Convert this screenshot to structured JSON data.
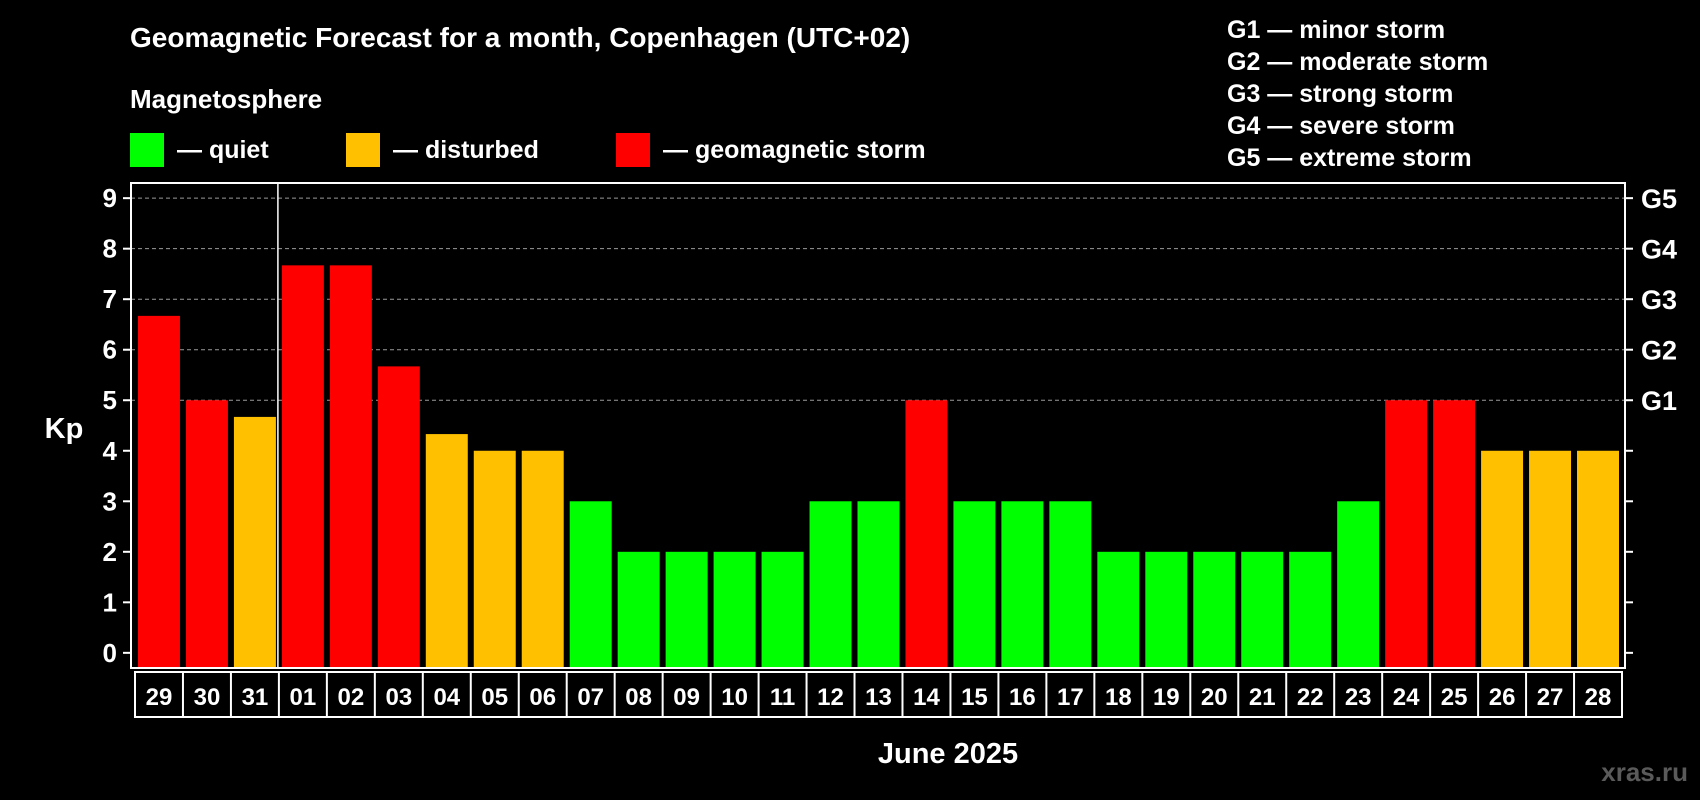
{
  "title": "Geomagnetic Forecast for a month, Copenhagen (UTC+02)",
  "subtitle": "Magnetosphere",
  "legend": [
    {
      "label": "— quiet",
      "color": "#00ff00"
    },
    {
      "label": "— disturbed",
      "color": "#ffc000"
    },
    {
      "label": "— geomagnetic storm",
      "color": "#ff0000"
    }
  ],
  "storm_scale": [
    "G1 — minor storm",
    "G2 — moderate storm",
    "G3 — strong storm",
    "G4 — severe storm",
    "G5 — extreme storm"
  ],
  "watermark": "xras.ru",
  "chart_data": {
    "type": "bar",
    "title": "Geomagnetic Forecast for a month, Copenhagen (UTC+02)",
    "ylabel": "Kp",
    "xlabel": "June 2025",
    "ylim": [
      -0.3,
      9.3
    ],
    "yticks": [
      "0",
      "1",
      "2",
      "3",
      "4",
      "5",
      "6",
      "7",
      "8",
      "9"
    ],
    "right_axis_labels": [
      {
        "value": 5,
        "label": "G1"
      },
      {
        "value": 6,
        "label": "G2"
      },
      {
        "value": 7,
        "label": "G3"
      },
      {
        "value": 8,
        "label": "G4"
      },
      {
        "value": 9,
        "label": "G5"
      }
    ],
    "grid": "dashed horizontal lines at Kp 5–9",
    "categories": [
      "29",
      "30",
      "31",
      "01",
      "02",
      "03",
      "04",
      "05",
      "06",
      "07",
      "08",
      "09",
      "10",
      "11",
      "12",
      "13",
      "14",
      "15",
      "16",
      "17",
      "18",
      "19",
      "20",
      "21",
      "22",
      "23",
      "24",
      "25",
      "26",
      "27",
      "28"
    ],
    "values": [
      6.67,
      5,
      4.67,
      7.67,
      7.67,
      5.67,
      4.33,
      4,
      4,
      3,
      2,
      2,
      2,
      2,
      3,
      3,
      5,
      3,
      3,
      3,
      2,
      2,
      2,
      2,
      2,
      3,
      5,
      5,
      4,
      4,
      4
    ],
    "levels": [
      "storm",
      "storm",
      "disturbed",
      "storm",
      "storm",
      "storm",
      "disturbed",
      "disturbed",
      "disturbed",
      "quiet",
      "quiet",
      "quiet",
      "quiet",
      "quiet",
      "quiet",
      "quiet",
      "storm",
      "quiet",
      "quiet",
      "quiet",
      "quiet",
      "quiet",
      "quiet",
      "quiet",
      "quiet",
      "quiet",
      "storm",
      "storm",
      "disturbed",
      "disturbed",
      "disturbed"
    ],
    "colors": {
      "quiet": "#00ff00",
      "disturbed": "#ffc000",
      "storm": "#ff0000"
    }
  }
}
